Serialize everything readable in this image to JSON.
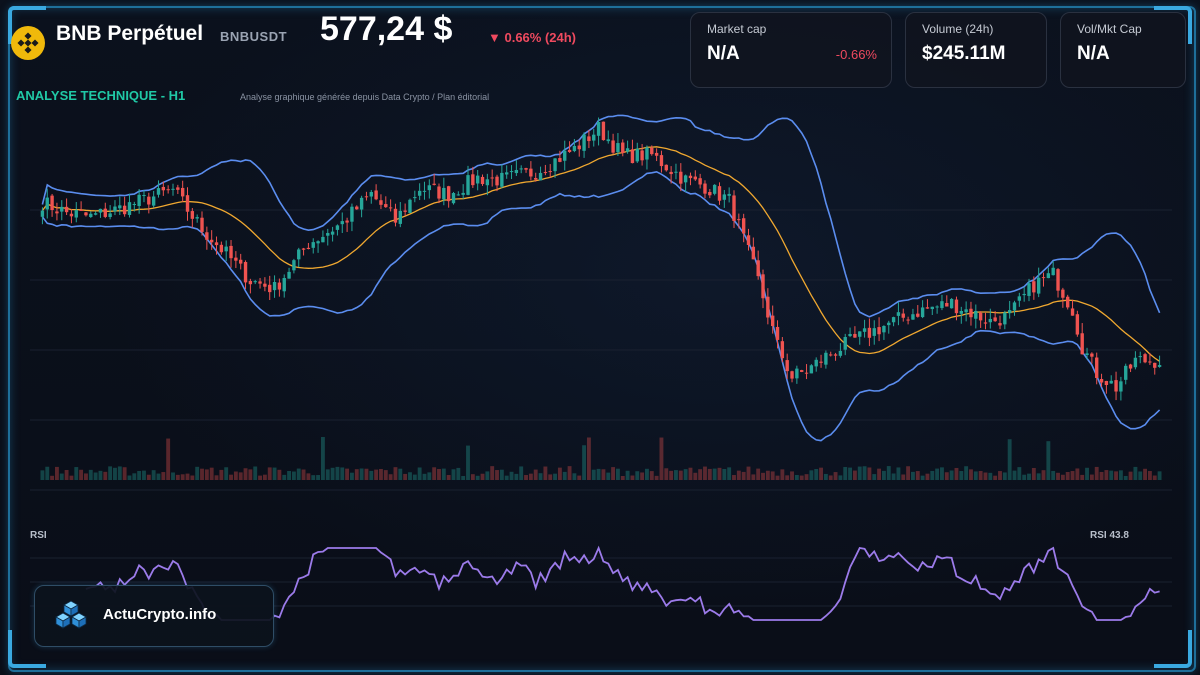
{
  "header": {
    "title": "BNB Perpétuel",
    "pair": "BNBUSDT",
    "price": "577,24 $",
    "change": "▼ 0.66% (24h)"
  },
  "cards": [
    {
      "label": "Market cap",
      "value": "N/A",
      "change": "-0.66%"
    },
    {
      "label": "Volume (24h)",
      "value": "$245.11M"
    },
    {
      "label": "Vol/Mkt Cap",
      "value": "N/A"
    }
  ],
  "analysis": {
    "title": "ANALYSE TECHNIQUE - H1",
    "subtitle": "Analyse graphique générée depuis Data Crypto / Plan éditorial"
  },
  "rsi": {
    "label": "RSI",
    "value_label": "RSI 43.8"
  },
  "brand": {
    "name": "ActuCrypto.info",
    "icon": "cubes-icon"
  },
  "colors": {
    "up": "#26a69a",
    "down": "#ef5350",
    "bollinger": "#5b8def",
    "ma": "#f0a830",
    "rsi": "#9c7bea",
    "accent": "#20c9a6",
    "negative": "#ef4a5f",
    "bnb": "#f0b90b"
  },
  "chart_data": [
    {
      "type": "candlestick",
      "title": "",
      "indicators": [
        "Bollinger Bands",
        "Moving Average",
        "Volume"
      ],
      "ylim": [
        455,
        640
      ],
      "n": 232,
      "close_anchors": [
        [
          0,
          595
        ],
        [
          5,
          590
        ],
        [
          10,
          588
        ],
        [
          16,
          592
        ],
        [
          22,
          597
        ],
        [
          27,
          601
        ],
        [
          33,
          582
        ],
        [
          38,
          570
        ],
        [
          43,
          557
        ],
        [
          48,
          553
        ],
        [
          55,
          575
        ],
        [
          62,
          585
        ],
        [
          68,
          599
        ],
        [
          73,
          586
        ],
        [
          78,
          602
        ],
        [
          84,
          599
        ],
        [
          90,
          607
        ],
        [
          95,
          606
        ],
        [
          102,
          610
        ],
        [
          110,
          621
        ],
        [
          115,
          631
        ],
        [
          120,
          618
        ],
        [
          126,
          618
        ],
        [
          133,
          606
        ],
        [
          137,
          603
        ],
        [
          142,
          596
        ],
        [
          145,
          577
        ],
        [
          148,
          557
        ],
        [
          152,
          525
        ],
        [
          155,
          510
        ],
        [
          158,
          513
        ],
        [
          162,
          520
        ],
        [
          167,
          527
        ],
        [
          175,
          536
        ],
        [
          181,
          542
        ],
        [
          188,
          546
        ],
        [
          196,
          537
        ],
        [
          200,
          540
        ],
        [
          205,
          555
        ],
        [
          209,
          560
        ],
        [
          213,
          543
        ],
        [
          215,
          525
        ],
        [
          218,
          512
        ],
        [
          222,
          505
        ],
        [
          226,
          518
        ],
        [
          231,
          518
        ]
      ],
      "volume_spikes": [
        26,
        58,
        88,
        112,
        113,
        128,
        200,
        208
      ],
      "rsi_last": 43.8
    }
  ]
}
